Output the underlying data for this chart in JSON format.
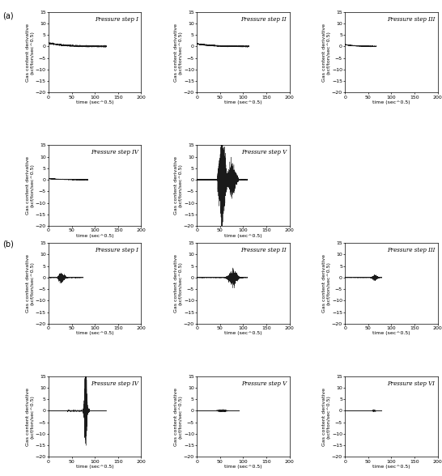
{
  "title_a": "(a)",
  "title_b": "(b)",
  "ylabel": "Gas content derivative\n(scf/ton/sec^0.5)",
  "xlabel": "time (sec^0.5)",
  "ylim": [
    -20,
    15
  ],
  "yticks": [
    -20,
    -15,
    -10,
    -5,
    0,
    5,
    10,
    15
  ],
  "xlim": [
    0,
    200
  ],
  "xticks": [
    0,
    50,
    100,
    150,
    200
  ],
  "section_a_labels": [
    "Pressure step I",
    "Pressure step II",
    "Pressure step III",
    "Pressure step IV",
    "Pressure step V"
  ],
  "section_b_labels": [
    "Pressure step I",
    "Pressure step II",
    "Pressure step III",
    "Pressure step IV",
    "Pressure step V",
    "Pressure step VI"
  ],
  "line_color": "#1a1a1a",
  "bg_color": "#ffffff",
  "step_font_size": 5,
  "label_font_size": 4.5,
  "tick_font_size": 4.5,
  "section_label_fontsize": 7
}
